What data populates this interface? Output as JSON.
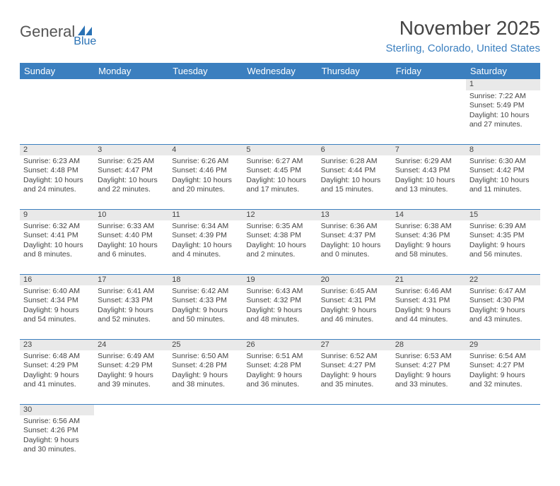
{
  "logo": {
    "part1": "General",
    "part2": "Blue"
  },
  "title": "November 2025",
  "location": "Sterling, Colorado, United States",
  "colors": {
    "header_bg": "#3b7fbf",
    "header_text": "#ffffff",
    "daynum_bg": "#e9e9e9",
    "row_border": "#3b7fbf",
    "body_text": "#444444",
    "location_text": "#3b7fbf",
    "logo_gray": "#555555",
    "logo_blue": "#2a72b5"
  },
  "weekdays": [
    "Sunday",
    "Monday",
    "Tuesday",
    "Wednesday",
    "Thursday",
    "Friday",
    "Saturday"
  ],
  "weeks": [
    [
      null,
      null,
      null,
      null,
      null,
      null,
      {
        "n": "1",
        "sr": "Sunrise: 7:22 AM",
        "ss": "Sunset: 5:49 PM",
        "dl": "Daylight: 10 hours and 27 minutes."
      }
    ],
    [
      {
        "n": "2",
        "sr": "Sunrise: 6:23 AM",
        "ss": "Sunset: 4:48 PM",
        "dl": "Daylight: 10 hours and 24 minutes."
      },
      {
        "n": "3",
        "sr": "Sunrise: 6:25 AM",
        "ss": "Sunset: 4:47 PM",
        "dl": "Daylight: 10 hours and 22 minutes."
      },
      {
        "n": "4",
        "sr": "Sunrise: 6:26 AM",
        "ss": "Sunset: 4:46 PM",
        "dl": "Daylight: 10 hours and 20 minutes."
      },
      {
        "n": "5",
        "sr": "Sunrise: 6:27 AM",
        "ss": "Sunset: 4:45 PM",
        "dl": "Daylight: 10 hours and 17 minutes."
      },
      {
        "n": "6",
        "sr": "Sunrise: 6:28 AM",
        "ss": "Sunset: 4:44 PM",
        "dl": "Daylight: 10 hours and 15 minutes."
      },
      {
        "n": "7",
        "sr": "Sunrise: 6:29 AM",
        "ss": "Sunset: 4:43 PM",
        "dl": "Daylight: 10 hours and 13 minutes."
      },
      {
        "n": "8",
        "sr": "Sunrise: 6:30 AM",
        "ss": "Sunset: 4:42 PM",
        "dl": "Daylight: 10 hours and 11 minutes."
      }
    ],
    [
      {
        "n": "9",
        "sr": "Sunrise: 6:32 AM",
        "ss": "Sunset: 4:41 PM",
        "dl": "Daylight: 10 hours and 8 minutes."
      },
      {
        "n": "10",
        "sr": "Sunrise: 6:33 AM",
        "ss": "Sunset: 4:40 PM",
        "dl": "Daylight: 10 hours and 6 minutes."
      },
      {
        "n": "11",
        "sr": "Sunrise: 6:34 AM",
        "ss": "Sunset: 4:39 PM",
        "dl": "Daylight: 10 hours and 4 minutes."
      },
      {
        "n": "12",
        "sr": "Sunrise: 6:35 AM",
        "ss": "Sunset: 4:38 PM",
        "dl": "Daylight: 10 hours and 2 minutes."
      },
      {
        "n": "13",
        "sr": "Sunrise: 6:36 AM",
        "ss": "Sunset: 4:37 PM",
        "dl": "Daylight: 10 hours and 0 minutes."
      },
      {
        "n": "14",
        "sr": "Sunrise: 6:38 AM",
        "ss": "Sunset: 4:36 PM",
        "dl": "Daylight: 9 hours and 58 minutes."
      },
      {
        "n": "15",
        "sr": "Sunrise: 6:39 AM",
        "ss": "Sunset: 4:35 PM",
        "dl": "Daylight: 9 hours and 56 minutes."
      }
    ],
    [
      {
        "n": "16",
        "sr": "Sunrise: 6:40 AM",
        "ss": "Sunset: 4:34 PM",
        "dl": "Daylight: 9 hours and 54 minutes."
      },
      {
        "n": "17",
        "sr": "Sunrise: 6:41 AM",
        "ss": "Sunset: 4:33 PM",
        "dl": "Daylight: 9 hours and 52 minutes."
      },
      {
        "n": "18",
        "sr": "Sunrise: 6:42 AM",
        "ss": "Sunset: 4:33 PM",
        "dl": "Daylight: 9 hours and 50 minutes."
      },
      {
        "n": "19",
        "sr": "Sunrise: 6:43 AM",
        "ss": "Sunset: 4:32 PM",
        "dl": "Daylight: 9 hours and 48 minutes."
      },
      {
        "n": "20",
        "sr": "Sunrise: 6:45 AM",
        "ss": "Sunset: 4:31 PM",
        "dl": "Daylight: 9 hours and 46 minutes."
      },
      {
        "n": "21",
        "sr": "Sunrise: 6:46 AM",
        "ss": "Sunset: 4:31 PM",
        "dl": "Daylight: 9 hours and 44 minutes."
      },
      {
        "n": "22",
        "sr": "Sunrise: 6:47 AM",
        "ss": "Sunset: 4:30 PM",
        "dl": "Daylight: 9 hours and 43 minutes."
      }
    ],
    [
      {
        "n": "23",
        "sr": "Sunrise: 6:48 AM",
        "ss": "Sunset: 4:29 PM",
        "dl": "Daylight: 9 hours and 41 minutes."
      },
      {
        "n": "24",
        "sr": "Sunrise: 6:49 AM",
        "ss": "Sunset: 4:29 PM",
        "dl": "Daylight: 9 hours and 39 minutes."
      },
      {
        "n": "25",
        "sr": "Sunrise: 6:50 AM",
        "ss": "Sunset: 4:28 PM",
        "dl": "Daylight: 9 hours and 38 minutes."
      },
      {
        "n": "26",
        "sr": "Sunrise: 6:51 AM",
        "ss": "Sunset: 4:28 PM",
        "dl": "Daylight: 9 hours and 36 minutes."
      },
      {
        "n": "27",
        "sr": "Sunrise: 6:52 AM",
        "ss": "Sunset: 4:27 PM",
        "dl": "Daylight: 9 hours and 35 minutes."
      },
      {
        "n": "28",
        "sr": "Sunrise: 6:53 AM",
        "ss": "Sunset: 4:27 PM",
        "dl": "Daylight: 9 hours and 33 minutes."
      },
      {
        "n": "29",
        "sr": "Sunrise: 6:54 AM",
        "ss": "Sunset: 4:27 PM",
        "dl": "Daylight: 9 hours and 32 minutes."
      }
    ],
    [
      {
        "n": "30",
        "sr": "Sunrise: 6:56 AM",
        "ss": "Sunset: 4:26 PM",
        "dl": "Daylight: 9 hours and 30 minutes."
      },
      null,
      null,
      null,
      null,
      null,
      null
    ]
  ]
}
